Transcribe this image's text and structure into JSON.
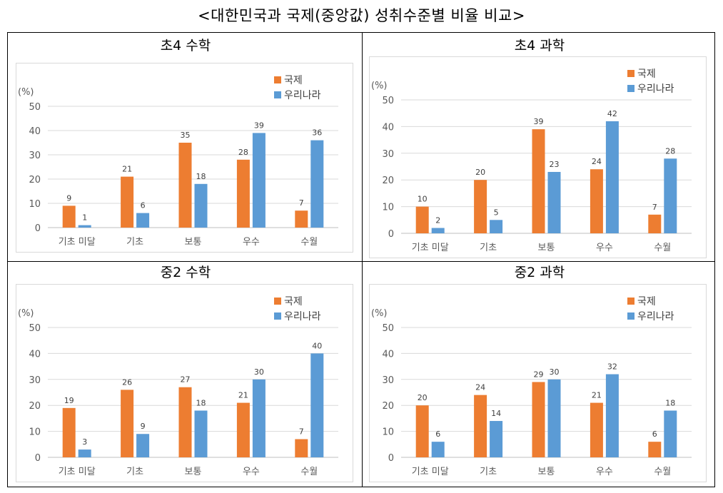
{
  "page_title": "<대한민국과 국제(중앙값) 성취수준별 비율 비교>",
  "colors": {
    "international": "#ED7D31",
    "korea": "#5B9BD5"
  },
  "chart_data": [
    {
      "type": "bar",
      "title": "초4 수학",
      "categories": [
        "기초 미달",
        "기초",
        "보통",
        "우수",
        "수월"
      ],
      "series": [
        {
          "name": "국제",
          "values": [
            9,
            21,
            35,
            28,
            7
          ]
        },
        {
          "name": "우리나라",
          "values": [
            1,
            6,
            18,
            39,
            36
          ]
        }
      ],
      "ylabel": "(%)",
      "yticks": [
        "0",
        "10",
        "20",
        "30",
        "40",
        "50"
      ],
      "ylim": [
        0,
        50
      ]
    },
    {
      "type": "bar",
      "title": "초4 과학",
      "categories": [
        "기초 미달",
        "기초",
        "보통",
        "우수",
        "수월"
      ],
      "series": [
        {
          "name": "국제",
          "values": [
            10,
            20,
            39,
            24,
            7
          ]
        },
        {
          "name": "우리나라",
          "values": [
            2,
            5,
            23,
            42,
            28
          ]
        }
      ],
      "ylabel": "(%)",
      "yticks": [
        "0",
        "10",
        "20",
        "30",
        "40",
        "50"
      ],
      "ylim": [
        0,
        50
      ]
    },
    {
      "type": "bar",
      "title": "중2 수학",
      "categories": [
        "기초 미달",
        "기초",
        "보통",
        "우수",
        "수월"
      ],
      "series": [
        {
          "name": "국제",
          "values": [
            19,
            26,
            27,
            21,
            7
          ]
        },
        {
          "name": "우리나라",
          "values": [
            3,
            9,
            18,
            30,
            40
          ]
        }
      ],
      "ylabel": "(%)",
      "yticks": [
        "0",
        "10",
        "20",
        "30",
        "40",
        "50"
      ],
      "ylim": [
        0,
        50
      ]
    },
    {
      "type": "bar",
      "title": "중2 과학",
      "categories": [
        "기초 미달",
        "기초",
        "보통",
        "우수",
        "수월"
      ],
      "series": [
        {
          "name": "국제",
          "values": [
            20,
            24,
            29,
            21,
            6
          ]
        },
        {
          "name": "우리나라",
          "values": [
            6,
            14,
            30,
            32,
            18
          ]
        }
      ],
      "ylabel": "(%)",
      "yticks": [
        "0",
        "10",
        "20",
        "30",
        "40",
        "50"
      ],
      "ylim": [
        0,
        50
      ]
    }
  ]
}
